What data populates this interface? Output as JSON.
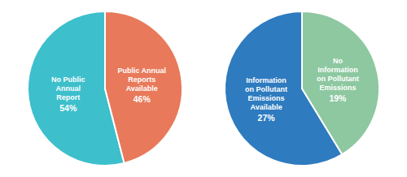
{
  "chart_data": [
    {
      "type": "pie",
      "categories": [
        "No Public\nAnnual\nReport",
        "Public Annual\nReports\nAvailable"
      ],
      "values": [
        54,
        46
      ],
      "value_labels": [
        "54%",
        "46%"
      ],
      "data_labels": true,
      "colors": [
        "#3dbfcc",
        "#e8795a"
      ]
    },
    {
      "type": "pie",
      "categories": [
        "Information\non Pollutant\nEmissions\nAvailable",
        "No\nInformation\non Pollutant\nEmissions"
      ],
      "values": [
        27,
        19
      ],
      "value_labels": [
        "27%",
        "19%"
      ],
      "data_labels": true,
      "colors": [
        "#2e7bbf",
        "#8dc8a0"
      ]
    }
  ]
}
